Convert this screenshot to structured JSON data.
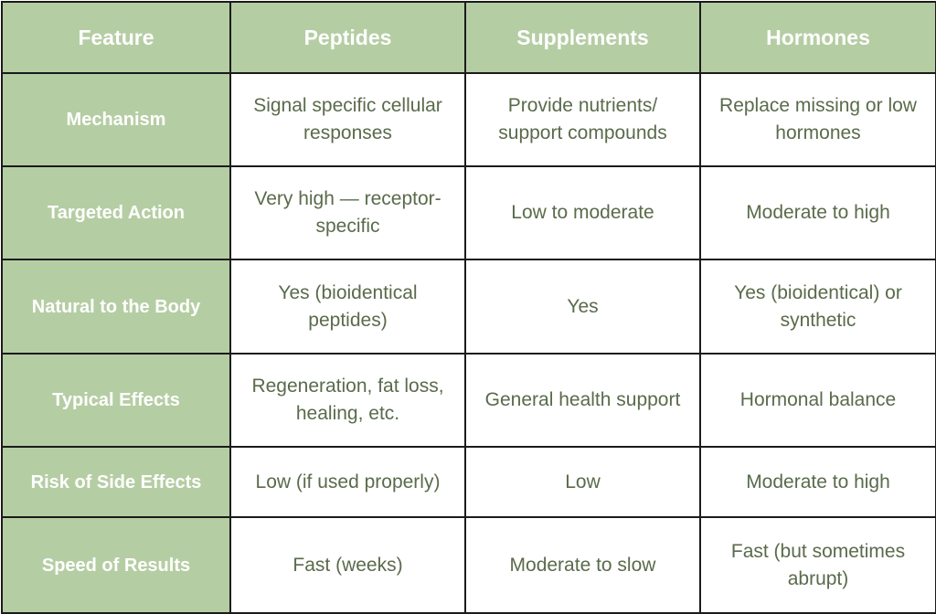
{
  "table": {
    "headers": [
      "Feature",
      "Peptides",
      "Supplements",
      "Hormones"
    ],
    "rows": [
      {
        "feature": "Mechanism",
        "peptides": "Signal specific cellular responses",
        "supplements": "Provide nutrients/ support compounds",
        "hormones": "Replace missing or low hormones"
      },
      {
        "feature": "Targeted Action",
        "peptides": "Very high — receptor-specific",
        "supplements": "Low to moderate",
        "hormones": "Moderate to high"
      },
      {
        "feature": "Natural to the Body",
        "peptides": "Yes (bioidentical peptides)",
        "supplements": "Yes",
        "hormones": "Yes (bioidentical) or synthetic"
      },
      {
        "feature": "Typical Effects",
        "peptides": "Regeneration, fat loss, healing, etc.",
        "supplements": "General health support",
        "hormones": "Hormonal balance"
      },
      {
        "feature": "Risk of Side Effects",
        "peptides": "Low (if used properly)",
        "supplements": "Low",
        "hormones": "Moderate to high"
      },
      {
        "feature": "Speed of Results",
        "peptides": "Fast (weeks)",
        "supplements": "Moderate to slow",
        "hormones": "Fast (but sometimes abrupt)"
      }
    ]
  },
  "colors": {
    "header_bg": "#b5cda3",
    "header_text": "#ffffff",
    "cell_text": "#5a6b4b",
    "border": "#1b1b1b"
  }
}
